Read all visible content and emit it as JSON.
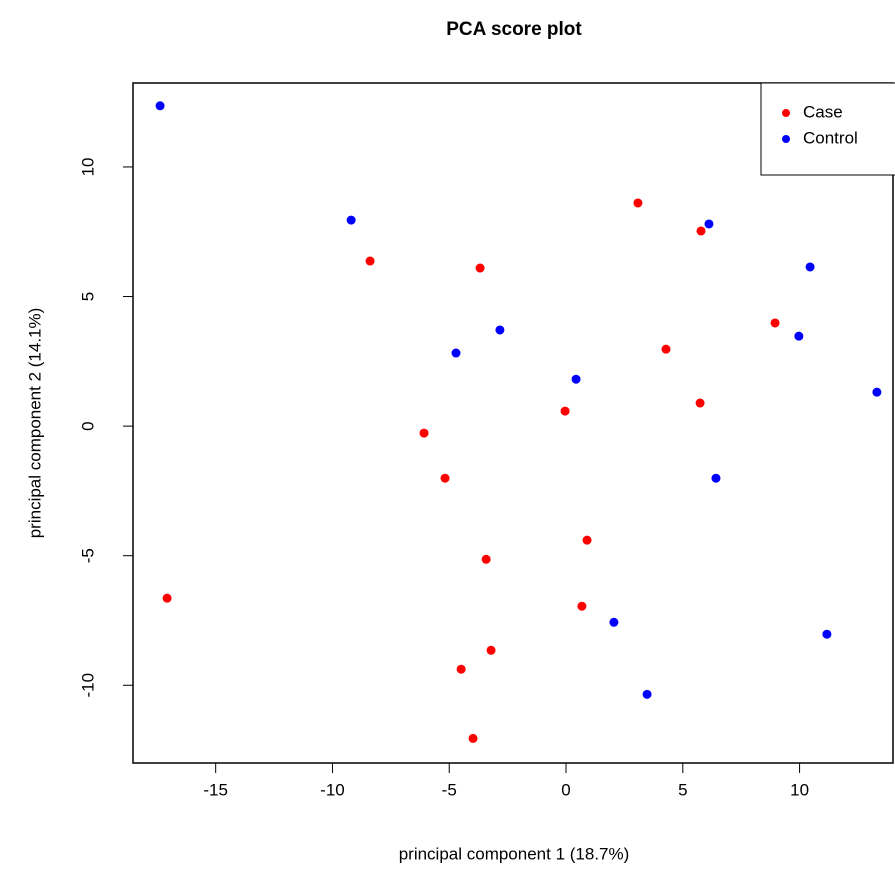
{
  "chart_data": {
    "type": "scatter",
    "title": "PCA score plot",
    "x_label": "principal component 1 (18.7%)",
    "y_label": "principal component 2 (14.1%)",
    "xlim": [
      -18.54,
      14.0
    ],
    "ylim": [
      -13.0,
      13.24
    ],
    "xticks": [
      -15,
      -10,
      -5,
      0,
      5,
      10
    ],
    "yticks": [
      -10,
      -5,
      0,
      5,
      10
    ],
    "legend": "top-right",
    "series": [
      {
        "name": "Case",
        "color": "#ff0000",
        "x": [
          -17.08,
          -8.39,
          -3.68,
          3.08,
          5.78,
          4.28,
          8.95,
          5.74,
          -0.04,
          -6.08,
          -5.18,
          0.9,
          -3.42,
          0.68,
          -3.21,
          -4.49,
          -3.98
        ],
        "values": [
          -6.64,
          6.37,
          6.1,
          8.61,
          7.53,
          2.97,
          3.98,
          0.89,
          0.58,
          -0.27,
          -2.01,
          -4.4,
          -5.14,
          -6.95,
          -8.65,
          -9.38,
          -12.05
        ]
      },
      {
        "name": "Control",
        "color": "#0000ff",
        "x": [
          -17.38,
          -9.2,
          6.12,
          10.45,
          -2.83,
          -4.71,
          0.43,
          9.97,
          13.31,
          6.42,
          2.05,
          11.17,
          3.47
        ],
        "values": [
          12.36,
          7.95,
          7.8,
          6.14,
          3.71,
          2.82,
          1.81,
          3.47,
          1.31,
          -2.01,
          -7.57,
          -8.03,
          -10.35
        ]
      }
    ]
  }
}
